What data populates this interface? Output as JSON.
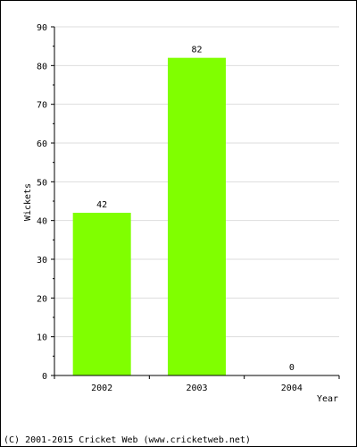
{
  "chart_data": {
    "type": "bar",
    "categories": [
      "2002",
      "2003",
      "2004"
    ],
    "values": [
      42,
      82,
      0
    ],
    "value_labels": [
      "42",
      "82",
      "0"
    ],
    "xlabel": "Year",
    "ylabel": "Wickets",
    "ylim": [
      0,
      90
    ],
    "yticks": [
      0,
      10,
      20,
      30,
      40,
      50,
      60,
      70,
      80,
      90
    ],
    "grid": true,
    "bar_color": "#80ff00"
  },
  "footer": {
    "credit": "(C) 2001-2015 Cricket Web (www.cricketweb.net)"
  }
}
